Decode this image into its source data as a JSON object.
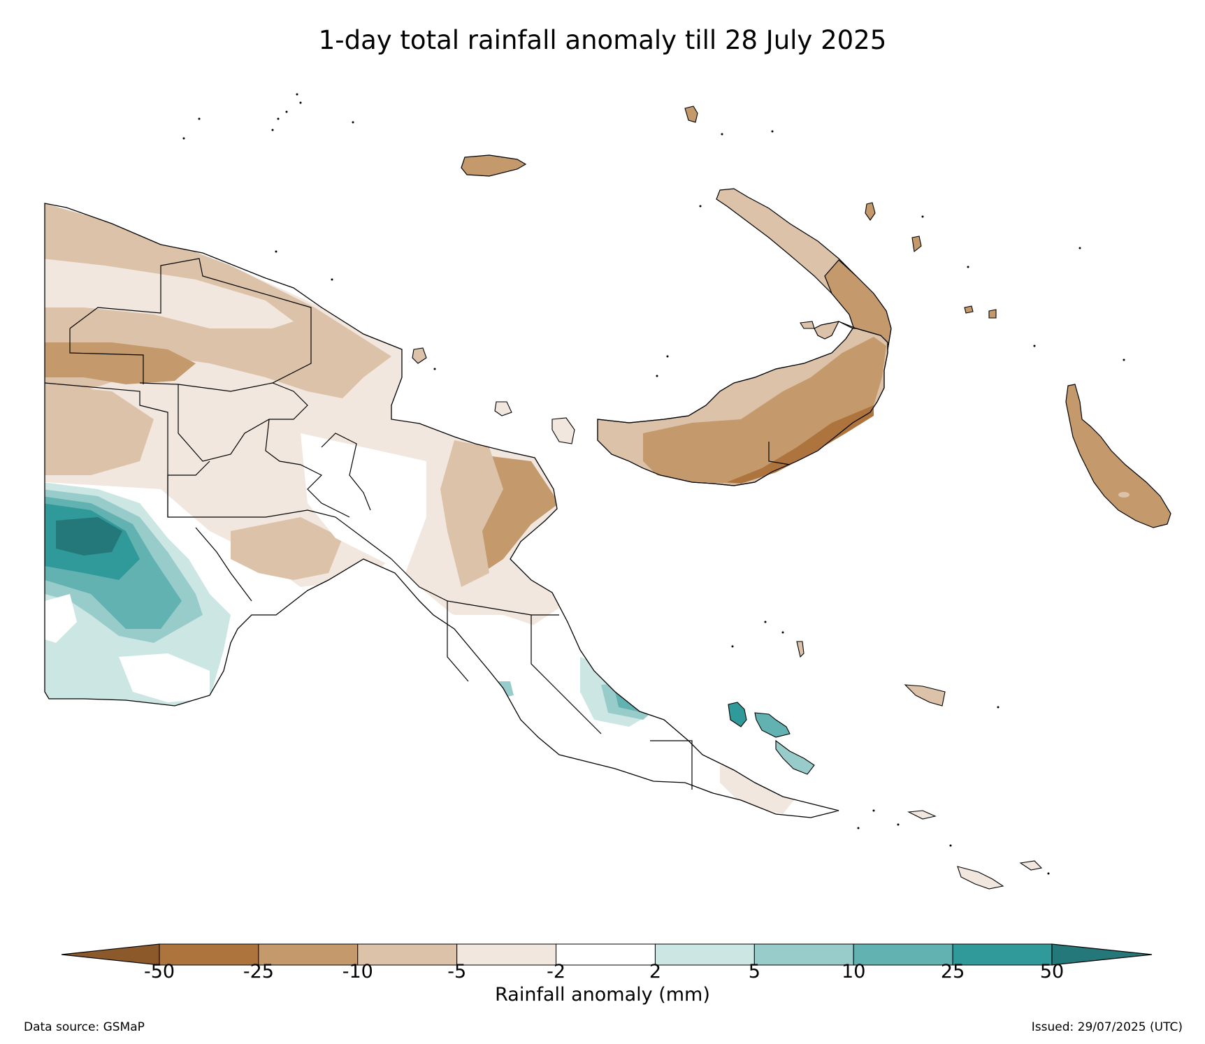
{
  "title": "1-day total rainfall anomaly till 28 July 2025",
  "colorbar": {
    "label": "Rainfall anomaly (mm)",
    "ticks": [
      "-50",
      "-25",
      "-10",
      "-5",
      "-2",
      "2",
      "5",
      "10",
      "25",
      "50"
    ],
    "extend": "both",
    "bins": [
      {
        "range": "< -50",
        "color": "#8c5a2a"
      },
      {
        "range": "-50 to -25",
        "color": "#ad743e"
      },
      {
        "range": "-25 to -10",
        "color": "#c49a6c"
      },
      {
        "range": "-10 to -5",
        "color": "#dbc2a8"
      },
      {
        "range": "-5 to -2",
        "color": "#f1e7de"
      },
      {
        "range": "-2 to 2",
        "color": "#ffffff"
      },
      {
        "range": "2 to 5",
        "color": "#cce6e4"
      },
      {
        "range": "5 to 10",
        "color": "#98cccb"
      },
      {
        "range": "10 to 25",
        "color": "#62b2b1"
      },
      {
        "range": "25 to 50",
        "color": "#30999a"
      },
      {
        "range": "> 50",
        "color": "#25787a"
      }
    ]
  },
  "footer": {
    "source": "Data source: GSMaP",
    "issued": "Issued: 29/07/2025 (UTC)"
  },
  "map": {
    "region": "Papua New Guinea",
    "features": [
      "land-outline",
      "province-boundaries",
      "rainfall-anomaly-contours"
    ]
  }
}
